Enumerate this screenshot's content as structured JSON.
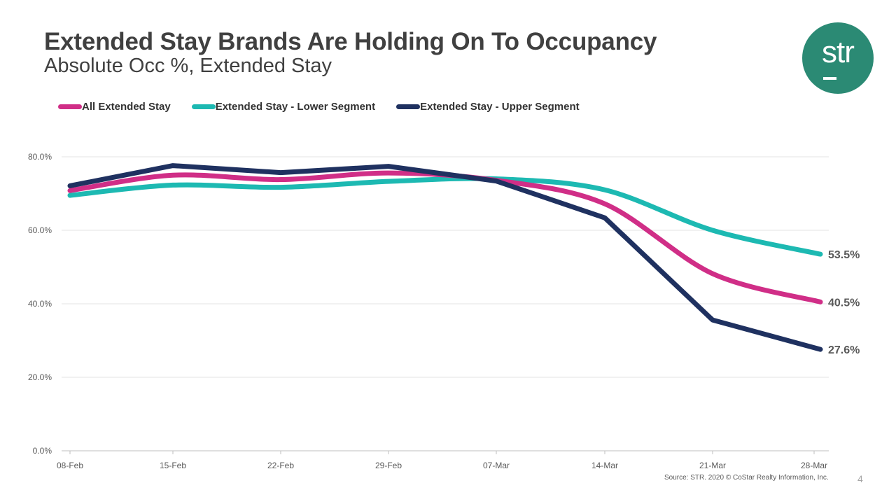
{
  "header": {
    "title": "Extended Stay Brands Are Holding On To Occupancy",
    "subtitle": "Absolute Occ %, Extended Stay"
  },
  "logo": {
    "text": "str",
    "color": "#2b8a74"
  },
  "footer": {
    "source": "Source: STR. 2020 © CoStar Realty Information, Inc.",
    "page_number": "4"
  },
  "chart_data": {
    "type": "line",
    "title": "Extended Stay Brands Are Holding On To Occupancy",
    "subtitle": "Absolute Occ %, Extended Stay",
    "xlabel": "",
    "ylabel": "",
    "categories": [
      "08-Feb",
      "15-Feb",
      "22-Feb",
      "29-Feb",
      "07-Mar",
      "14-Mar",
      "21-Mar",
      "28-Mar"
    ],
    "y_ticks": [
      0,
      20,
      40,
      60,
      80
    ],
    "y_tick_labels": [
      "0.0%",
      "20.0%",
      "40.0%",
      "60.0%",
      "80.0%"
    ],
    "ylim": [
      0,
      80
    ],
    "grid": true,
    "legend_position": "top-left",
    "series": [
      {
        "name": "All Extended Stay",
        "color": "#d02e87",
        "values": [
          70.8,
          75.0,
          73.8,
          75.6,
          73.6,
          67.2,
          48.2,
          40.5
        ],
        "end_label": "40.5%"
      },
      {
        "name": "Extended Stay - Lower Segment",
        "color": "#1db9b2",
        "values": [
          69.5,
          72.3,
          71.7,
          73.3,
          74.0,
          71.0,
          60.0,
          53.5
        ],
        "end_label": "53.5%"
      },
      {
        "name": "Extended Stay - Upper Segment",
        "color": "#1f3160",
        "values": [
          72.1,
          77.6,
          75.7,
          77.4,
          73.4,
          63.4,
          35.6,
          27.6
        ],
        "end_label": "27.6%"
      }
    ]
  }
}
